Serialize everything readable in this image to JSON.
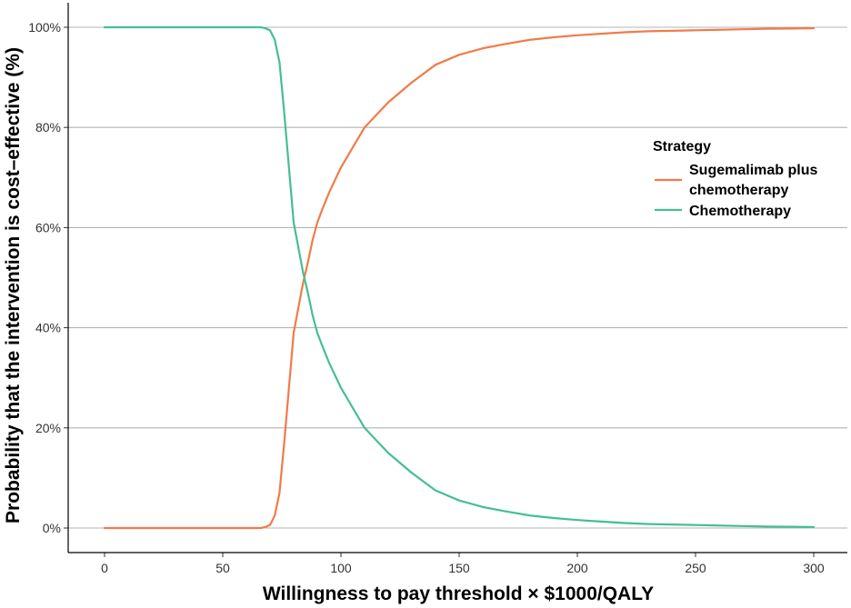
{
  "chart_data": {
    "type": "line",
    "xlabel": "Willingness to pay threshold × $1000/QALY",
    "ylabel": "Probability that the intervention is cost–effective (%)",
    "xlim": [
      0,
      300
    ],
    "ylim": [
      0,
      100
    ],
    "x_ticks": [
      0,
      50,
      100,
      150,
      200,
      250,
      300
    ],
    "x_tick_labels": [
      "0",
      "50",
      "100",
      "150",
      "200",
      "250",
      "300"
    ],
    "y_ticks": [
      0,
      20,
      40,
      60,
      80,
      100
    ],
    "y_tick_labels": [
      "0%",
      "20%",
      "40%",
      "60%",
      "80%",
      "100%"
    ],
    "grid": "horizontal major lines",
    "legend": {
      "title": "Strategy",
      "placement": "right",
      "entries": [
        {
          "lines": [
            "Sugemalimab plus",
            "chemotherapy"
          ],
          "color": "#F07B4A"
        },
        {
          "lines": [
            "Chemotherapy"
          ],
          "color": "#45BE95"
        }
      ]
    },
    "series": [
      {
        "name": "Sugemalimab plus chemotherapy",
        "color": "#F07B4A",
        "x": [
          0,
          60,
          66,
          68,
          70,
          72,
          74,
          76,
          78,
          80,
          82,
          84,
          86,
          88,
          90,
          92,
          95,
          100,
          105,
          110,
          115,
          120,
          125,
          130,
          140,
          150,
          160,
          170,
          180,
          190,
          200,
          210,
          220,
          230,
          240,
          250,
          260,
          270,
          280,
          290,
          300
        ],
        "y": [
          0,
          0,
          0,
          0.2,
          0.6,
          2.5,
          7,
          17,
          28,
          39,
          44,
          49,
          53,
          57.5,
          61,
          63.5,
          67,
          72,
          76,
          80,
          82.5,
          85,
          87,
          89,
          92.5,
          94.5,
          95.8,
          96.7,
          97.5,
          98,
          98.4,
          98.7,
          99,
          99.2,
          99.3,
          99.4,
          99.5,
          99.6,
          99.7,
          99.75,
          99.8
        ]
      },
      {
        "name": "Chemotherapy",
        "color": "#45BE95",
        "x": [
          0,
          60,
          66,
          68,
          70,
          72,
          74,
          76,
          78,
          80,
          82,
          84,
          86,
          88,
          90,
          92,
          95,
          100,
          105,
          110,
          115,
          120,
          125,
          130,
          140,
          150,
          160,
          170,
          180,
          190,
          200,
          210,
          220,
          230,
          240,
          250,
          260,
          270,
          280,
          290,
          300
        ],
        "y": [
          100,
          100,
          100,
          99.8,
          99.4,
          97.5,
          93,
          83,
          72,
          61,
          56,
          51,
          47,
          42.5,
          39,
          36.5,
          33,
          28,
          24,
          20,
          17.5,
          15,
          13,
          11,
          7.5,
          5.5,
          4.2,
          3.3,
          2.5,
          2,
          1.6,
          1.3,
          1,
          0.8,
          0.7,
          0.6,
          0.5,
          0.4,
          0.3,
          0.25,
          0.2
        ]
      }
    ]
  }
}
